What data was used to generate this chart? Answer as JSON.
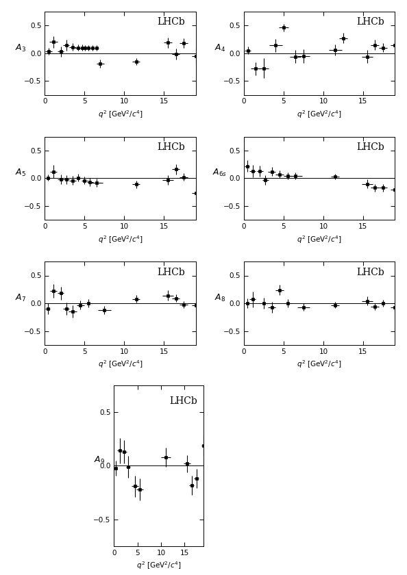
{
  "panels": [
    {
      "label": "$A_3$",
      "x": [
        0.5,
        1.1,
        2.0,
        2.7,
        3.5,
        4.2,
        4.7,
        5.1,
        5.5,
        6.0,
        6.5,
        7.0,
        11.5,
        15.5,
        16.5,
        17.5,
        19.0
      ],
      "y": [
        0.03,
        0.2,
        0.03,
        0.14,
        0.11,
        0.1,
        0.1,
        0.1,
        0.09,
        0.09,
        0.09,
        -0.19,
        -0.15,
        0.19,
        -0.02,
        0.18,
        -0.05
      ],
      "xerr": [
        0.4,
        0.5,
        0.4,
        0.4,
        0.4,
        0.4,
        0.3,
        0.3,
        0.3,
        0.3,
        0.3,
        0.5,
        0.5,
        0.5,
        0.5,
        0.5,
        0.5
      ],
      "yerr": [
        0.06,
        0.1,
        0.09,
        0.1,
        0.07,
        0.06,
        0.06,
        0.05,
        0.05,
        0.05,
        0.05,
        0.07,
        0.06,
        0.09,
        0.1,
        0.09,
        0.14
      ]
    },
    {
      "label": "$A_4$",
      "x": [
        0.5,
        1.5,
        2.5,
        4.0,
        5.0,
        6.5,
        7.5,
        11.5,
        12.5,
        15.5,
        16.5,
        17.5,
        19.0
      ],
      "y": [
        0.05,
        -0.28,
        -0.27,
        0.14,
        0.46,
        -0.06,
        -0.05,
        0.06,
        0.27,
        -0.06,
        0.15,
        0.1,
        0.15
      ],
      "xerr": [
        0.4,
        0.6,
        0.6,
        0.8,
        0.6,
        0.7,
        0.8,
        0.8,
        0.5,
        0.7,
        0.5,
        0.5,
        0.5
      ],
      "yerr": [
        0.07,
        0.12,
        0.18,
        0.12,
        0.07,
        0.12,
        0.12,
        0.1,
        0.09,
        0.12,
        0.09,
        0.08,
        0.08
      ]
    },
    {
      "label": "$A_5$",
      "x": [
        0.4,
        1.1,
        2.0,
        2.7,
        3.5,
        4.2,
        5.0,
        5.7,
        6.5,
        11.5,
        15.5,
        16.5,
        17.5,
        19.0
      ],
      "y": [
        0.01,
        0.12,
        -0.02,
        -0.02,
        -0.04,
        0.01,
        -0.04,
        -0.07,
        -0.08,
        -0.11,
        -0.03,
        0.16,
        0.02,
        -0.27
      ],
      "xerr": [
        0.3,
        0.4,
        0.4,
        0.4,
        0.4,
        0.4,
        0.4,
        0.4,
        0.8,
        0.5,
        0.7,
        0.5,
        0.5,
        0.5
      ],
      "yerr": [
        0.06,
        0.12,
        0.09,
        0.08,
        0.08,
        0.07,
        0.07,
        0.07,
        0.07,
        0.07,
        0.09,
        0.09,
        0.07,
        0.11
      ]
    },
    {
      "label": "$A_{6s}$",
      "x": [
        0.4,
        1.1,
        2.0,
        2.7,
        3.5,
        4.5,
        5.5,
        6.5,
        11.5,
        15.5,
        16.5,
        17.5,
        19.0
      ],
      "y": [
        0.22,
        0.13,
        0.13,
        -0.03,
        0.12,
        0.07,
        0.04,
        0.04,
        0.03,
        -0.1,
        -0.17,
        -0.17,
        -0.2
      ],
      "xerr": [
        0.3,
        0.4,
        0.4,
        0.4,
        0.5,
        0.5,
        0.5,
        0.8,
        0.5,
        0.7,
        0.5,
        0.5,
        0.5
      ],
      "yerr": [
        0.1,
        0.11,
        0.1,
        0.09,
        0.08,
        0.07,
        0.06,
        0.06,
        0.05,
        0.08,
        0.07,
        0.07,
        0.07
      ]
    },
    {
      "label": "$A_7$",
      "x": [
        0.4,
        1.1,
        2.0,
        2.7,
        3.5,
        4.5,
        5.5,
        7.5,
        11.5,
        15.5,
        16.5,
        17.5,
        19.0
      ],
      "y": [
        -0.1,
        0.22,
        0.18,
        -0.1,
        -0.15,
        -0.03,
        0.0,
        -0.12,
        0.08,
        0.14,
        0.09,
        -0.02,
        -0.03
      ],
      "xerr": [
        0.3,
        0.4,
        0.4,
        0.4,
        0.5,
        0.5,
        0.5,
        0.8,
        0.5,
        0.7,
        0.5,
        0.5,
        0.5
      ],
      "yerr": [
        0.1,
        0.12,
        0.12,
        0.11,
        0.11,
        0.08,
        0.07,
        0.07,
        0.07,
        0.09,
        0.07,
        0.06,
        0.06
      ]
    },
    {
      "label": "$A_8$",
      "x": [
        0.4,
        1.1,
        2.5,
        3.5,
        4.5,
        5.5,
        7.5,
        11.5,
        15.5,
        16.5,
        17.5,
        19.0
      ],
      "y": [
        0.0,
        0.07,
        0.0,
        -0.07,
        0.24,
        0.0,
        -0.07,
        -0.03,
        0.04,
        -0.06,
        0.0,
        -0.07
      ],
      "xerr": [
        0.3,
        0.4,
        0.5,
        0.5,
        0.5,
        0.5,
        0.8,
        0.5,
        0.7,
        0.5,
        0.5,
        0.5
      ],
      "yerr": [
        0.09,
        0.14,
        0.1,
        0.1,
        0.09,
        0.07,
        0.07,
        0.06,
        0.08,
        0.06,
        0.06,
        0.06
      ]
    },
    {
      "label": "$A_9$",
      "x": [
        0.4,
        1.2,
        2.2,
        3.0,
        4.5,
        5.5,
        11.0,
        15.5,
        16.5,
        17.5,
        19.0
      ],
      "y": [
        -0.02,
        0.14,
        0.13,
        -0.01,
        -0.19,
        -0.22,
        0.08,
        0.02,
        -0.18,
        -0.12,
        0.19
      ],
      "xerr": [
        0.3,
        0.5,
        0.5,
        0.5,
        0.7,
        0.7,
        1.0,
        0.7,
        0.5,
        0.5,
        0.5
      ],
      "yerr": [
        0.07,
        0.12,
        0.11,
        0.1,
        0.1,
        0.1,
        0.09,
        0.08,
        0.09,
        0.09,
        0.1
      ]
    }
  ],
  "xlim": [
    0,
    19
  ],
  "ylim": [
    -0.75,
    0.75
  ],
  "yticks": [
    -0.5,
    0.0,
    0.5
  ],
  "xticks": [
    0,
    5,
    10,
    15
  ],
  "xlabel": "$q^2$ [GeV$^2$/$c^4$]",
  "lhcb_label": "LHCb",
  "lhcb_fontsize": 10,
  "bg_color": "#ffffff",
  "marker_color": "black",
  "marker_size": 3.0,
  "line_width": 0.8,
  "cap_size": 0
}
